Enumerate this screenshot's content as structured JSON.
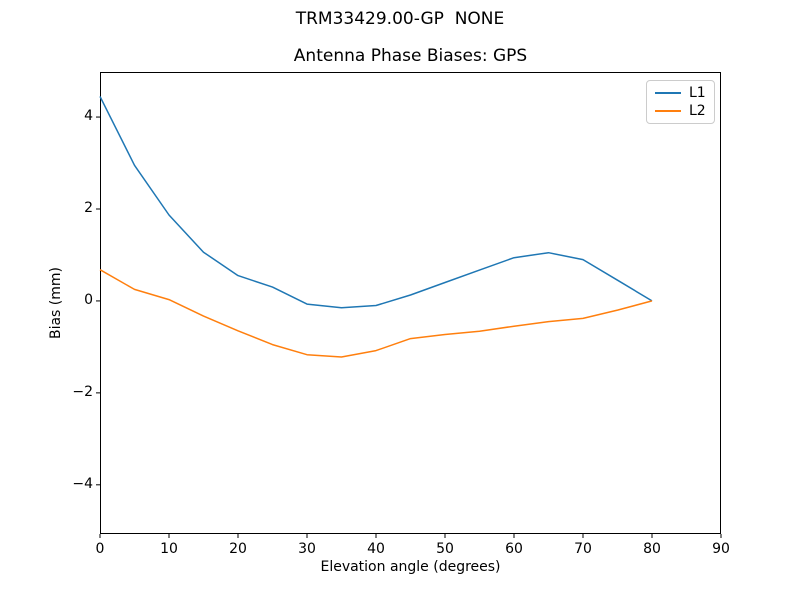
{
  "figure": {
    "suptitle": "TRM33429.00-GP  NONE",
    "axes_title": "Antenna Phase Biases: GPS",
    "xlabel": "Elevation angle (degrees)",
    "ylabel": "Bias (mm)",
    "background": "#ffffff"
  },
  "chart_data": {
    "type": "line",
    "suptitle": "TRM33429.00-GP  NONE",
    "title": "Antenna Phase Biases: GPS",
    "xlabel": "Elevation angle (degrees)",
    "ylabel": "Bias (mm)",
    "xlim": [
      0,
      90
    ],
    "ylim": [
      -5.07,
      4.98
    ],
    "xticks": [
      0,
      10,
      20,
      30,
      40,
      50,
      60,
      70,
      80,
      90
    ],
    "yticks": [
      -4,
      -2,
      0,
      2,
      4
    ],
    "grid": false,
    "legend_position": "upper right",
    "legend_entries": [
      "L1",
      "L2"
    ],
    "x": [
      0,
      5,
      10,
      15,
      20,
      25,
      30,
      35,
      40,
      45,
      50,
      55,
      60,
      65,
      70,
      75,
      80
    ],
    "series": [
      {
        "name": "L1",
        "color": "#1f77b4",
        "values": [
          4.45,
          2.95,
          1.87,
          1.06,
          0.55,
          0.3,
          -0.07,
          -0.15,
          -0.1,
          0.13,
          0.4,
          0.67,
          0.94,
          1.05,
          0.9,
          0.45,
          0.0
        ]
      },
      {
        "name": "L2",
        "color": "#ff7f0e",
        "values": [
          0.68,
          0.25,
          0.03,
          -0.33,
          -0.65,
          -0.95,
          -1.17,
          -1.22,
          -1.08,
          -0.82,
          -0.73,
          -0.66,
          -0.55,
          -0.45,
          -0.38,
          -0.2,
          0.0
        ]
      }
    ]
  }
}
